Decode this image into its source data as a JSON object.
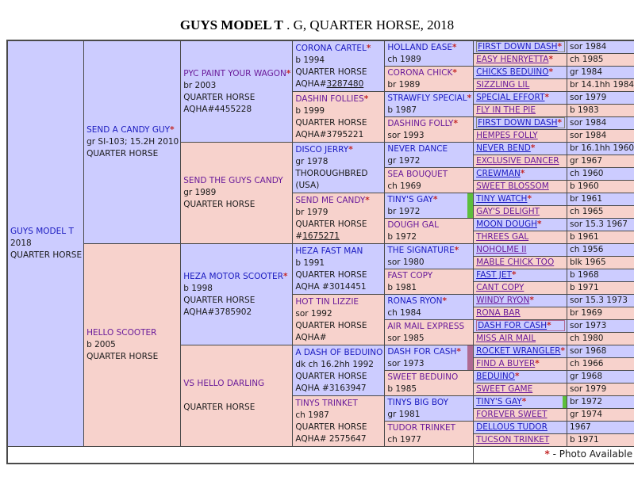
{
  "title": {
    "name": "GUYS MODEL T",
    "suffix": " . G, QUARTER HORSE, 2018"
  },
  "footer": {
    "star": "*",
    "text": " - Photo Available"
  },
  "colors": {
    "bg_blue": "#ccccff",
    "bg_pink": "#f7d2cc",
    "link_blue": "#1b1bc0",
    "link_purple": "#6a1b9a",
    "star_red": "#c42828",
    "text_dark": "#1a1a1a",
    "border": "#4a4a4a",
    "stripe_green": "#5cbe3c",
    "stripe_mauve": "#b06a92",
    "box_gray": "#85857a"
  },
  "pedigree": {
    "gen1": [
      {
        "name": "GUYS MODEL T",
        "color": "blue",
        "photo": false,
        "details": [
          "2018",
          "QUARTER HORSE"
        ]
      }
    ],
    "gen2": [
      {
        "name": "SEND A CANDY GUY",
        "color": "blue",
        "photo": true,
        "details": [
          "gr SI-103; 15.2H 2010",
          "QUARTER HORSE"
        ]
      },
      {
        "name": "HELLO SCOOTER",
        "color": "purple",
        "photo": false,
        "details": [
          "b 2005",
          "QUARTER HORSE"
        ]
      }
    ],
    "gen3": [
      {
        "name": "PYC PAINT YOUR WAGON",
        "color": "purple",
        "photo": true,
        "details": [
          "br 2003",
          "QUARTER HORSE",
          "AQHA#4455228"
        ]
      },
      {
        "name": "SEND THE GUYS CANDY",
        "color": "purple",
        "photo": false,
        "details": [
          "gr 1989",
          "QUARTER HORSE"
        ]
      },
      {
        "name": "HEZA MOTOR SCOOTER",
        "color": "blue",
        "photo": true,
        "details": [
          "b 1998",
          "QUARTER HORSE",
          "AQHA#3785902"
        ]
      },
      {
        "name": "VS HELLO DARLING",
        "color": "purple",
        "photo": false,
        "details": [
          "",
          "QUARTER HORSE"
        ]
      }
    ],
    "gen4": [
      {
        "name": "CORONA CARTEL",
        "color": "blue",
        "photo": true,
        "details": [
          "b 1994",
          "QUARTER HORSE",
          {
            "prefix": "AQHA#",
            "number": "3287480"
          }
        ]
      },
      {
        "name": "DASHIN FOLLIES",
        "color": "purple",
        "photo": true,
        "details": [
          "b 1999",
          "QUARTER HORSE",
          "AQHA#3795221"
        ]
      },
      {
        "name": "DISCO JERRY",
        "color": "blue",
        "photo": true,
        "details": [
          "gr 1978",
          "THOROUGHBRED",
          "(USA)"
        ]
      },
      {
        "name": "SEND ME CANDY",
        "color": "purple",
        "photo": true,
        "details": [
          "br 1979",
          "QUARTER HORSE",
          {
            "prefix": "#",
            "number": "1675271"
          }
        ]
      },
      {
        "name": "HEZA FAST MAN",
        "color": "blue",
        "photo": false,
        "details": [
          "b 1991",
          "QUARTER HORSE",
          "AQHA #3014451"
        ]
      },
      {
        "name": "HOT TIN LIZZIE",
        "color": "purple",
        "photo": false,
        "details": [
          "sor 1992",
          "QUARTER HORSE",
          "AQHA#"
        ]
      },
      {
        "name": "A DASH OF BEDUINO",
        "color": "blue",
        "photo": false,
        "details": [
          "dk ch 16.2hh 1992",
          "QUARTER HORSE",
          "AQHA #3163947"
        ]
      },
      {
        "name": "TINYS TRINKET",
        "color": "purple",
        "photo": false,
        "details": [
          "ch 1987",
          "QUARTER HORSE",
          "AQHA# 2575647"
        ]
      }
    ],
    "gen5": [
      {
        "name": "HOLLAND EASE",
        "color": "blue",
        "photo": true,
        "details": [
          "ch 1989"
        ]
      },
      {
        "name": "CORONA CHICK",
        "color": "purple",
        "photo": true,
        "details": [
          "br 1989"
        ]
      },
      {
        "name": "STRAWFLY SPECIAL",
        "color": "blue",
        "photo": true,
        "details": [
          "b 1987"
        ]
      },
      {
        "name": "DASHING FOLLY",
        "color": "purple",
        "photo": true,
        "details": [
          "sor 1993"
        ]
      },
      {
        "name": "NEVER DANCE",
        "color": "blue",
        "photo": false,
        "details": [
          "gr 1972"
        ]
      },
      {
        "name": "SEA BOUQUET",
        "color": "purple",
        "photo": false,
        "details": [
          "ch 1969"
        ]
      },
      {
        "name": "TINY'S GAY",
        "color": "blue",
        "photo": true,
        "details": [
          "br 1972"
        ],
        "stripe": "stripe_green"
      },
      {
        "name": "DOUGH GAL",
        "color": "purple",
        "photo": false,
        "details": [
          "b 1972"
        ]
      },
      {
        "name": "THE SIGNATURE",
        "color": "blue",
        "photo": true,
        "details": [
          "sor 1980"
        ]
      },
      {
        "name": "FAST COPY",
        "color": "purple",
        "photo": false,
        "details": [
          "b 1981"
        ]
      },
      {
        "name": "RONAS RYON",
        "color": "blue",
        "photo": true,
        "details": [
          "ch 1984"
        ]
      },
      {
        "name": "AIR MAIL EXPRESS",
        "color": "purple",
        "photo": false,
        "details": [
          "sor 1985"
        ]
      },
      {
        "name": "DASH FOR CASH",
        "color": "blue",
        "photo": true,
        "details": [
          "sor 1973"
        ],
        "stripe": "stripe_mauve"
      },
      {
        "name": "SWEET BEDUINO",
        "color": "purple",
        "photo": false,
        "details": [
          "b 1985"
        ]
      },
      {
        "name": "TINYS BIG BOY",
        "color": "blue",
        "photo": false,
        "details": [
          "gr 1981"
        ]
      },
      {
        "name": "TUDOR TRINKET",
        "color": "purple",
        "photo": false,
        "details": [
          "ch 1977"
        ]
      }
    ],
    "gen6": [
      {
        "name": "FIRST DOWN DASH",
        "color": "blue",
        "photo": true,
        "year": "sor 1984",
        "box": "box_gray"
      },
      {
        "name": "EASY HENRYETTA",
        "color": "purple",
        "photo": true,
        "year": "ch 1985"
      },
      {
        "name": "CHICKS BEDUINO",
        "color": "blue",
        "photo": true,
        "year": "gr 1984"
      },
      {
        "name": "SIZZLING LIL",
        "color": "purple",
        "photo": false,
        "year": "br 14.1hh 1984"
      },
      {
        "name": "SPECIAL EFFORT",
        "color": "blue",
        "photo": true,
        "year": "sor 1979"
      },
      {
        "name": "FLY IN THE PIE",
        "color": "purple",
        "photo": false,
        "year": "b 1983"
      },
      {
        "name": "FIRST DOWN DASH",
        "color": "blue",
        "photo": true,
        "year": "sor 1984",
        "box": "box_gray"
      },
      {
        "name": "HEMPES FOLLY",
        "color": "purple",
        "photo": false,
        "year": "sor 1984"
      },
      {
        "name": "NEVER BEND",
        "color": "blue",
        "photo": true,
        "year": "br 16.1hh 1960"
      },
      {
        "name": "EXCLUSIVE DANCER",
        "color": "purple",
        "photo": false,
        "year": "gr 1967"
      },
      {
        "name": "CREWMAN",
        "color": "blue",
        "photo": true,
        "year": "ch 1960"
      },
      {
        "name": "SWEET BLOSSOM",
        "color": "purple",
        "photo": false,
        "year": "b 1960"
      },
      {
        "name": "TINY WATCH",
        "color": "blue",
        "photo": true,
        "year": "br 1961"
      },
      {
        "name": "GAY'S DELIGHT",
        "color": "purple",
        "photo": false,
        "year": "ch 1965"
      },
      {
        "name": "MOON DOUGH",
        "color": "blue",
        "photo": true,
        "year": "sor 15.3 1967"
      },
      {
        "name": "THREES GAL",
        "color": "purple",
        "photo": false,
        "year": "b 1961"
      },
      {
        "name": "NOHOLME II",
        "color": "purple",
        "photo": false,
        "year": "ch 1956"
      },
      {
        "name": "MABLE CHICK TOO",
        "color": "purple",
        "photo": false,
        "year": "blk 1965"
      },
      {
        "name": "FAST JET",
        "color": "blue",
        "photo": true,
        "year": "b 1968"
      },
      {
        "name": "CANT COPY",
        "color": "purple",
        "photo": false,
        "year": "b 1971"
      },
      {
        "name": "WINDY RYON",
        "color": "purple",
        "photo": true,
        "year": "sor 15.3 1973"
      },
      {
        "name": "RONA BAR",
        "color": "purple",
        "photo": false,
        "year": "br 1969"
      },
      {
        "name": "DASH FOR CASH",
        "color": "blue",
        "photo": true,
        "year": "sor 1973",
        "box": "stripe_mauve"
      },
      {
        "name": "MISS AIR MAIL",
        "color": "purple",
        "photo": false,
        "year": "ch 1980"
      },
      {
        "name": "ROCKET WRANGLER",
        "color": "blue",
        "photo": true,
        "year": "sor 1968"
      },
      {
        "name": "FIND A BUYER",
        "color": "purple",
        "photo": true,
        "year": "ch 1966"
      },
      {
        "name": "BEDUINO",
        "color": "blue",
        "photo": true,
        "year": "gr 1968"
      },
      {
        "name": "SWEET GAME",
        "color": "purple",
        "photo": false,
        "year": "sor 1979"
      },
      {
        "name": "TINY'S GAY",
        "color": "blue",
        "photo": true,
        "year": "br 1972",
        "stripe": "stripe_green"
      },
      {
        "name": "FOREVER SWEET",
        "color": "purple",
        "photo": false,
        "year": "gr 1974"
      },
      {
        "name": "DELLOUS TUDOR",
        "color": "blue",
        "photo": false,
        "year": "1967"
      },
      {
        "name": "TUCSON TRINKET",
        "color": "purple",
        "photo": false,
        "year": "b 1971"
      }
    ]
  }
}
